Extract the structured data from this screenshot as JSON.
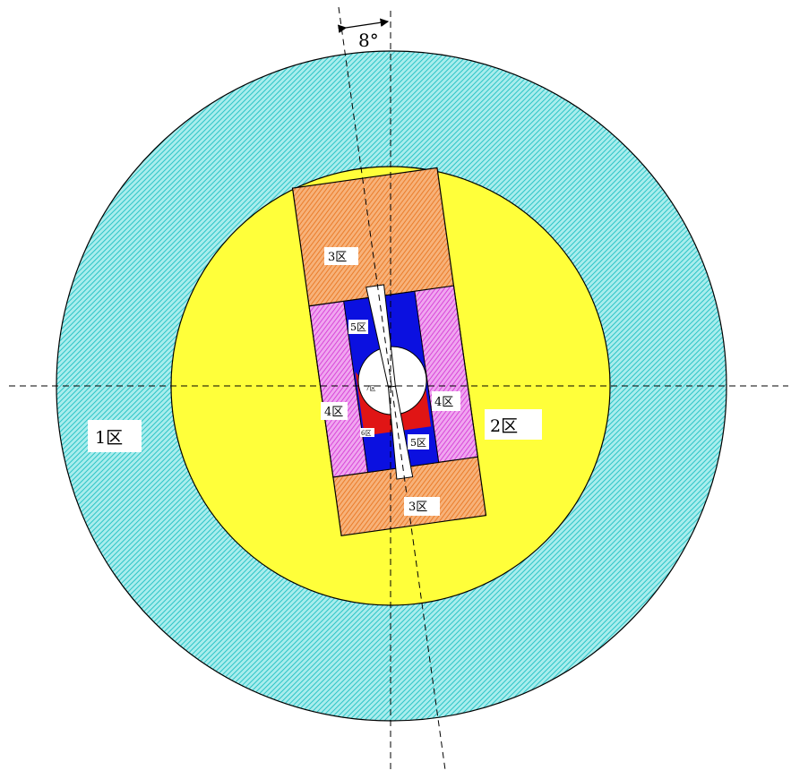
{
  "diagram": {
    "angle_label": "8°",
    "zones": {
      "zone1": "1区",
      "zone2": "2区",
      "zone3_top": "3区",
      "zone3_bottom": "3区",
      "zone4_left": "4区",
      "zone4_right": "4区",
      "zone5_top": "5区",
      "zone5_bottom": "5区",
      "zone6": "6区",
      "zone7": "7区"
    }
  },
  "colors": {
    "zone1_cyan": "#2ec9c9",
    "zone2_yellow": "#ffff3a",
    "zone3_orange": "#f29444",
    "zone4_magenta": "#e060e0",
    "zone5_blue": "#0b10e0",
    "zone6_red": "#e01515",
    "cavity_white": "#ffffff"
  }
}
